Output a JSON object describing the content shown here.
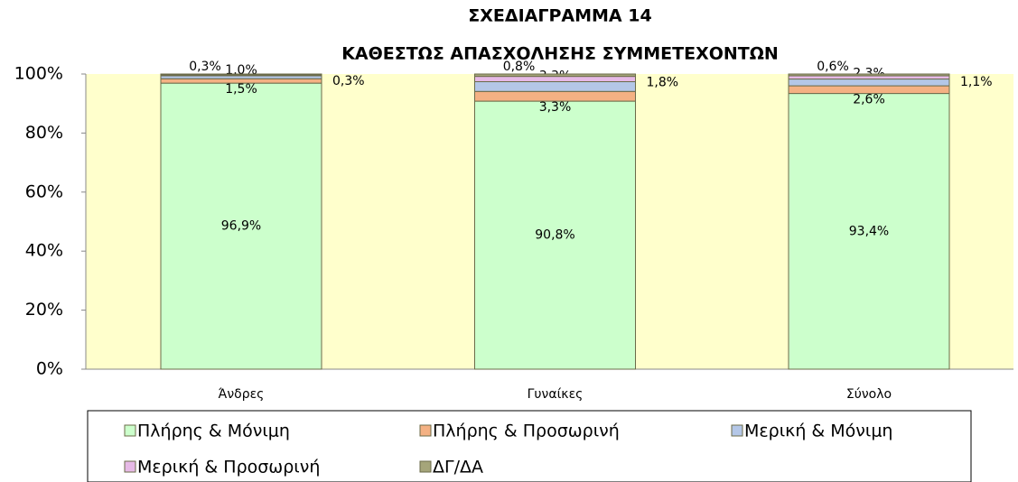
{
  "chart_data": {
    "type": "stacked_bar",
    "title": "ΣΧΕΔΙΑΓΡΑΜΜΑ 14",
    "subtitle": "ΚΑΘΕΣΤΩΣ ΑΠΑΣΧΟΛΗΣΗΣ ΣΥΜΜΕΤΕΧΟΝΤΩΝ",
    "categories": [
      "Άνδρες",
      "Γυναίκες",
      "Σύνολο"
    ],
    "series": [
      {
        "name": "Πλήρης & Μόνιμη",
        "color": "#ccffcc",
        "values": [
          96.9,
          90.8,
          93.4
        ],
        "value_labels": [
          "96,9%",
          "90,8%",
          "93,4%"
        ]
      },
      {
        "name": "Πλήρης & Προσωρινή",
        "color": "#f4b183",
        "values": [
          1.5,
          3.3,
          2.6
        ],
        "value_labels": [
          "1,5%",
          "3,3%",
          "2,6%"
        ]
      },
      {
        "name": "Μερική & Μόνιμη",
        "color": "#b4c7e7",
        "values": [
          1.0,
          3.3,
          2.3
        ],
        "value_labels": [
          "1,0%",
          "3,3%",
          "2,3%"
        ]
      },
      {
        "name": "Μερική & Προσωρινή",
        "color": "#e6b9e6",
        "values": [
          0.3,
          1.8,
          1.1
        ],
        "value_labels": [
          "0,3%",
          "1,8%",
          "1,1%"
        ]
      },
      {
        "name": "ΔΓ/ΔΑ",
        "color": "#a5a57a",
        "values": [
          0.3,
          0.8,
          0.6
        ],
        "value_labels": [
          "0,3%",
          "0,8%",
          "0,6%"
        ]
      }
    ],
    "ylim": [
      0,
      100
    ],
    "yticks": [
      {
        "value": 0,
        "label": "0%"
      },
      {
        "value": 20,
        "label": "20%"
      },
      {
        "value": 40,
        "label": "40%"
      },
      {
        "value": 60,
        "label": "60%"
      },
      {
        "value": 80,
        "label": "80%"
      },
      {
        "value": 100,
        "label": "100%"
      }
    ],
    "legend": "bottom"
  }
}
